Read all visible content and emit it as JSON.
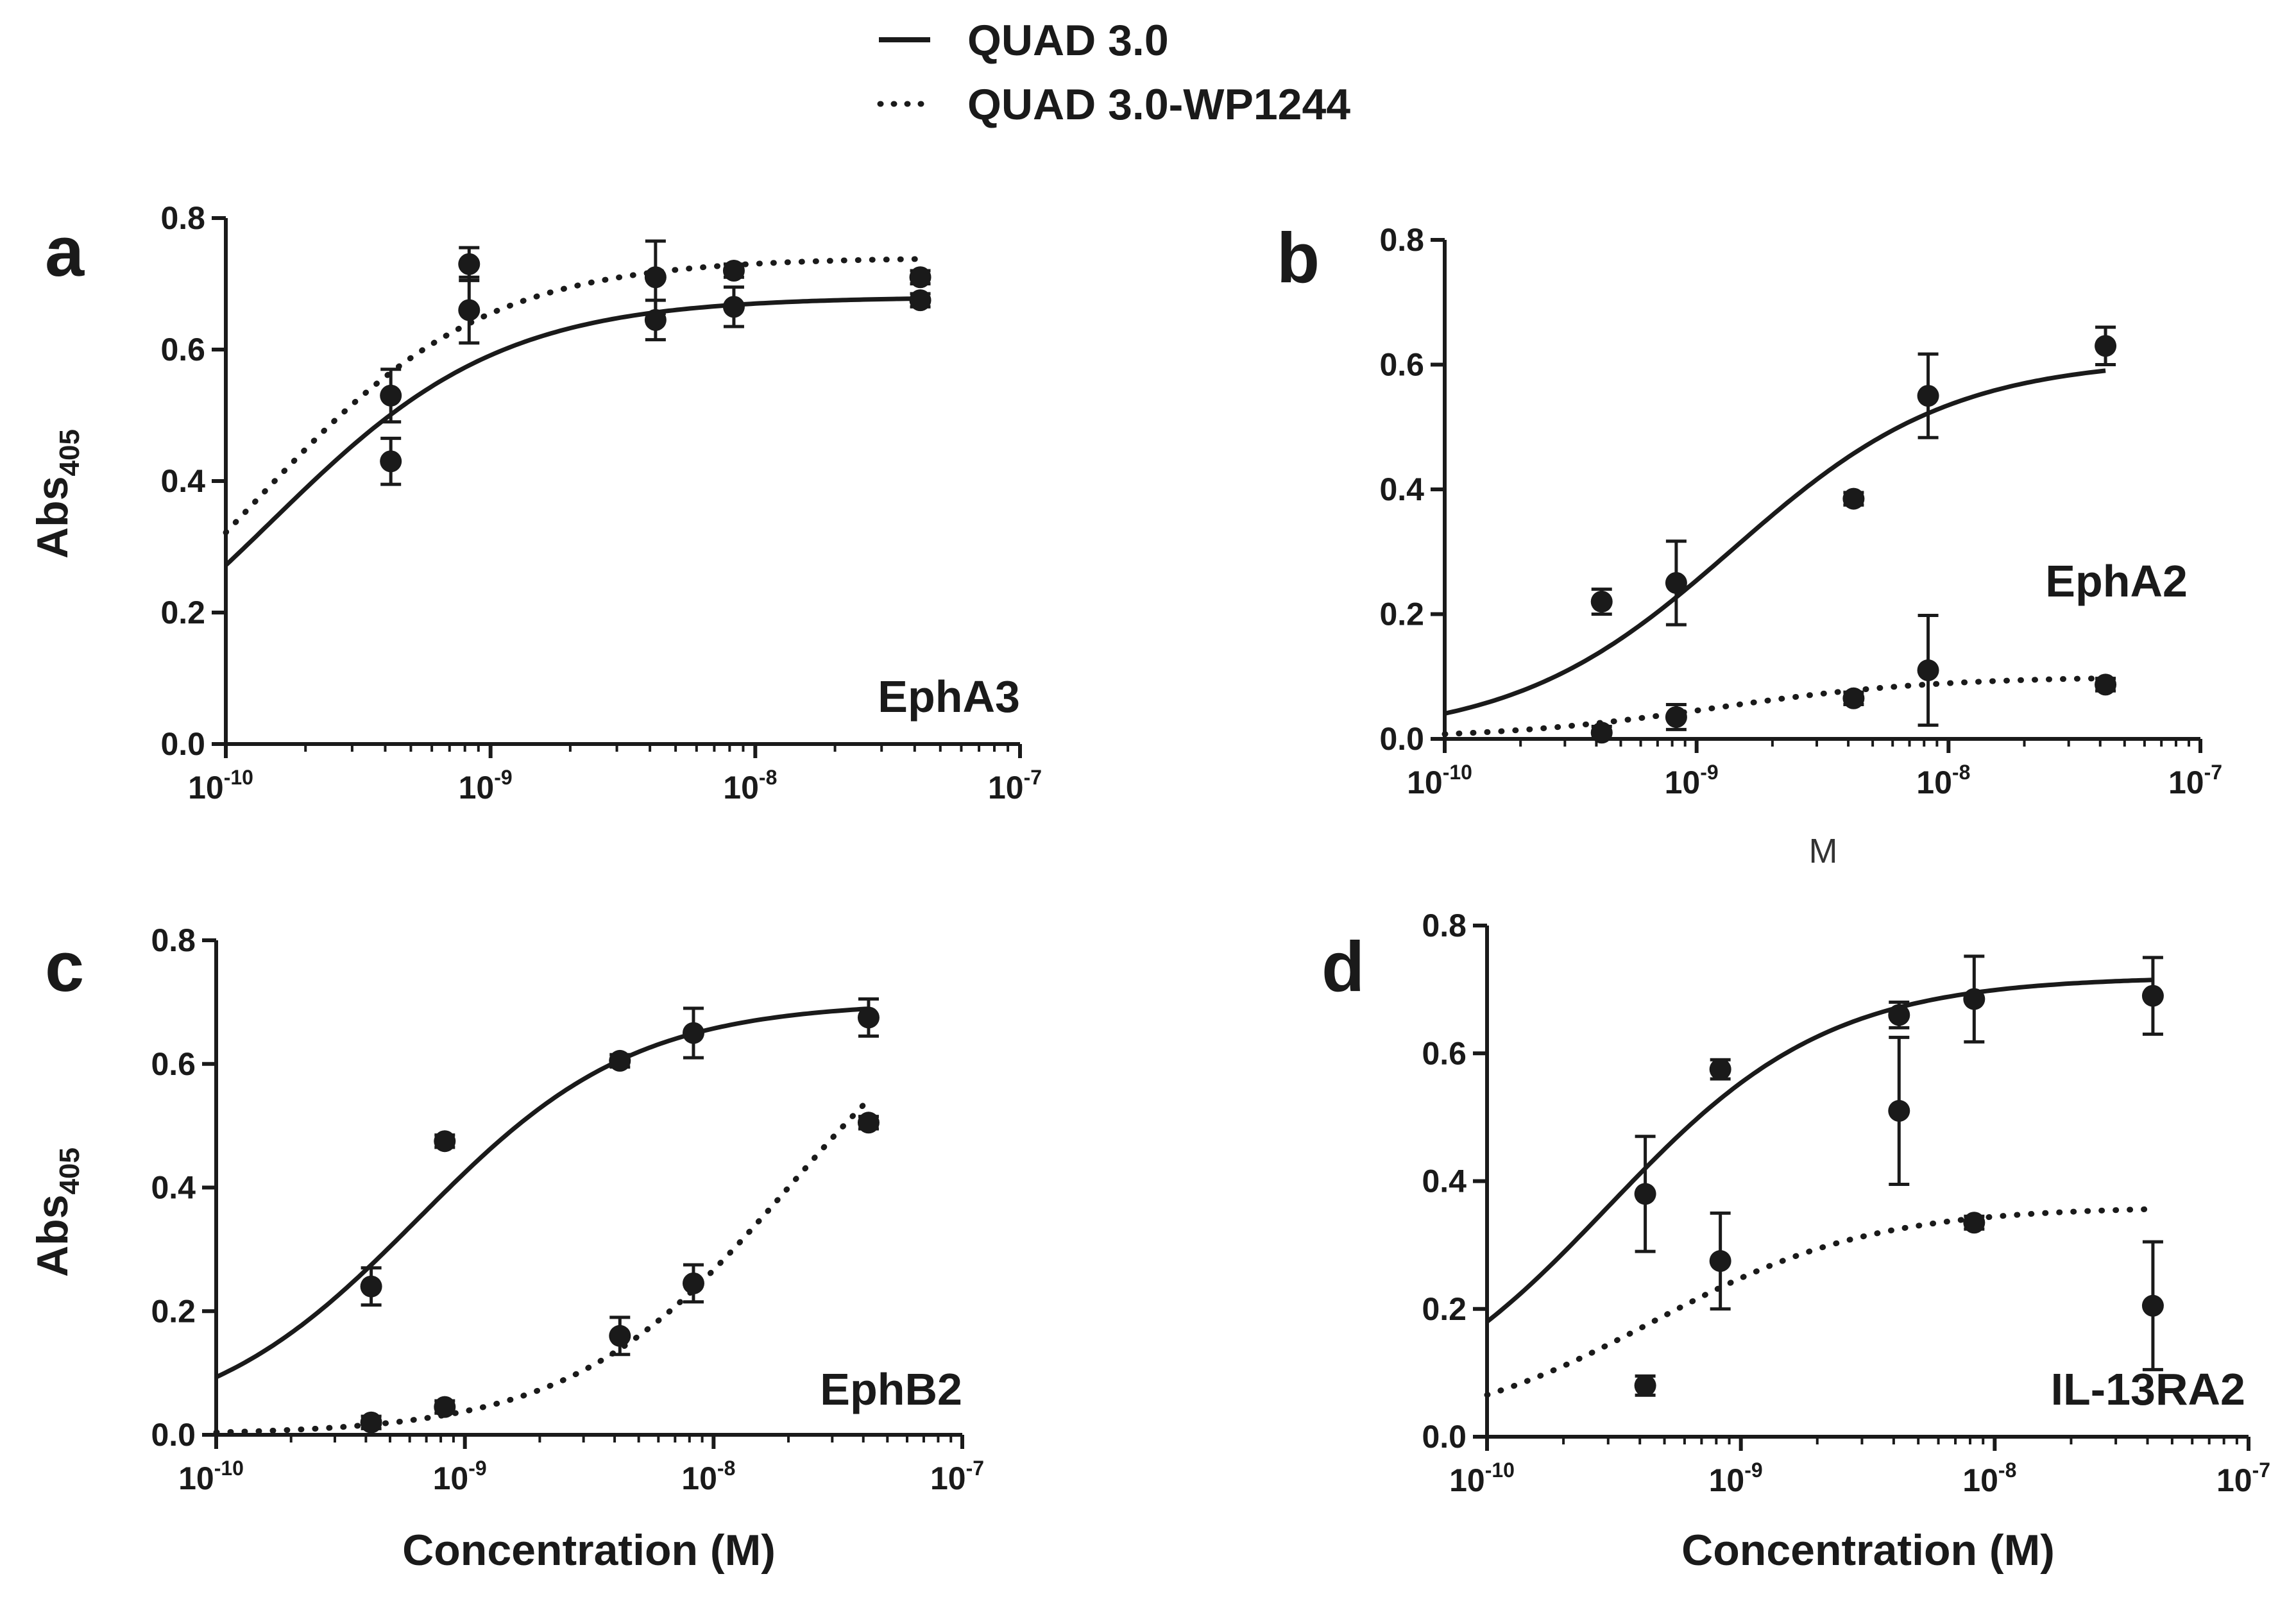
{
  "chart_data": [
    {
      "type": "scatter",
      "panel": "a",
      "label": "EphA3",
      "ylabel": "Abs",
      "ylabel_sub": "405",
      "xlabel": "",
      "xscale": "log",
      "xlim": [
        1e-10,
        1e-07
      ],
      "ylim": [
        0,
        0.8
      ],
      "yticks": [
        "0.0",
        "0.2",
        "0.4",
        "0.6",
        "0.8"
      ],
      "xticks": [
        {
          "base": "10",
          "exp": "-10"
        },
        {
          "base": "10",
          "exp": "-9"
        },
        {
          "base": "10",
          "exp": "-8"
        },
        {
          "base": "10",
          "exp": "-7"
        }
      ],
      "series": [
        {
          "name": "QUAD 3.0",
          "style": "solid",
          "fit": {
            "bottom": 0,
            "top": 0.68,
            "ec50": 1.5e-10
          },
          "points": [
            {
              "x": 4.2e-10,
              "y": 0.43,
              "err": 0.035
            },
            {
              "x": 8.3e-10,
              "y": 0.66,
              "err": 0.05
            },
            {
              "x": 4.2e-09,
              "y": 0.645,
              "err": 0.03
            },
            {
              "x": 8.3e-09,
              "y": 0.665,
              "err": 0.03
            },
            {
              "x": 4.2e-08,
              "y": 0.675,
              "err": 0.01
            }
          ]
        },
        {
          "name": "QUAD 3.0-WP1244",
          "style": "dotted",
          "fit": {
            "bottom": 0,
            "top": 0.74,
            "ec50": 1.3e-10
          },
          "points": [
            {
              "x": 4.2e-10,
              "y": 0.53,
              "err": 0.04
            },
            {
              "x": 8.3e-10,
              "y": 0.73,
              "err": 0.025
            },
            {
              "x": 4.2e-09,
              "y": 0.71,
              "err": 0.055
            },
            {
              "x": 8.3e-09,
              "y": 0.72,
              "err": 0.01
            },
            {
              "x": 4.2e-08,
              "y": 0.71,
              "err": 0.01
            }
          ]
        }
      ]
    },
    {
      "type": "scatter",
      "panel": "b",
      "label": "EphA2",
      "ylabel": "",
      "ylabel_sub": "",
      "xlabel": "M",
      "xscale": "log",
      "xlim": [
        1e-10,
        1e-07
      ],
      "ylim": [
        0,
        0.8
      ],
      "yticks": [
        "0.0",
        "0.2",
        "0.4",
        "0.6",
        "0.8"
      ],
      "xticks": [
        {
          "base": "10",
          "exp": "-10"
        },
        {
          "base": "10",
          "exp": "-9"
        },
        {
          "base": "10",
          "exp": "-8"
        },
        {
          "base": "10",
          "exp": "-7"
        }
      ],
      "series": [
        {
          "name": "QUAD 3.0",
          "style": "solid",
          "fit": {
            "bottom": 0,
            "top": 0.61,
            "ec50": 1.4e-09
          },
          "points": [
            {
              "x": 4.2e-10,
              "y": 0.22,
              "err": 0.02
            },
            {
              "x": 8.3e-10,
              "y": 0.25,
              "err": 0.067
            },
            {
              "x": 4.2e-09,
              "y": 0.385,
              "err": 0.01
            },
            {
              "x": 8.3e-09,
              "y": 0.55,
              "err": 0.067
            },
            {
              "x": 4.2e-08,
              "y": 0.63,
              "err": 0.03
            }
          ]
        },
        {
          "name": "QUAD 3.0-WP1244",
          "style": "dotted",
          "fit": {
            "bottom": 0,
            "top": 0.1,
            "ec50": 1.2e-09
          },
          "points": [
            {
              "x": 4.2e-10,
              "y": 0.01,
              "err": 0.01
            },
            {
              "x": 8.3e-10,
              "y": 0.035,
              "err": 0.02
            },
            {
              "x": 4.2e-09,
              "y": 0.065,
              "err": 0.01
            },
            {
              "x": 8.3e-09,
              "y": 0.11,
              "err": 0.088
            },
            {
              "x": 4.2e-08,
              "y": 0.087,
              "err": 0.01
            }
          ]
        }
      ]
    },
    {
      "type": "scatter",
      "panel": "c",
      "label": "EphB2",
      "ylabel": "Abs",
      "ylabel_sub": "405",
      "xlabel": "Concentration (M)",
      "xscale": "log",
      "xlim": [
        1e-10,
        1e-07
      ],
      "ylim": [
        0,
        0.8
      ],
      "yticks": [
        "0.0",
        "0.2",
        "0.4",
        "0.6",
        "0.8"
      ],
      "xticks": [
        {
          "base": "10",
          "exp": "-10"
        },
        {
          "base": "10",
          "exp": "-9"
        },
        {
          "base": "10",
          "exp": "-8"
        },
        {
          "base": "10",
          "exp": "-7"
        }
      ],
      "series": [
        {
          "name": "QUAD 3.0",
          "style": "solid",
          "fit": {
            "bottom": 0,
            "top": 0.7,
            "ec50": 6.5e-10
          },
          "points": [
            {
              "x": 4.2e-10,
              "y": 0.24,
              "err": 0.03
            },
            {
              "x": 8.3e-10,
              "y": 0.475,
              "err": 0.01
            },
            {
              "x": 4.2e-09,
              "y": 0.605,
              "err": 0.01
            },
            {
              "x": 8.3e-09,
              "y": 0.65,
              "err": 0.04
            },
            {
              "x": 4.2e-08,
              "y": 0.675,
              "err": 0.03
            }
          ]
        },
        {
          "name": "QUAD 3.0-WP1244",
          "style": "dotted",
          "fit": {
            "bottom": 0,
            "top": 0.8,
            "ec50": 2e-08
          },
          "points": [
            {
              "x": 4.2e-10,
              "y": 0.02,
              "err": 0.01
            },
            {
              "x": 8.3e-10,
              "y": 0.045,
              "err": 0.01
            },
            {
              "x": 4.2e-09,
              "y": 0.16,
              "err": 0.03
            },
            {
              "x": 8.3e-09,
              "y": 0.245,
              "err": 0.03
            },
            {
              "x": 4.2e-08,
              "y": 0.505,
              "err": 0.01
            }
          ]
        }
      ]
    },
    {
      "type": "scatter",
      "panel": "d",
      "label": "IL-13RA2",
      "ylabel": "",
      "ylabel_sub": "",
      "xlabel": "Concentration (M)",
      "xscale": "log",
      "xlim": [
        1e-10,
        1e-07
      ],
      "ylim": [
        0,
        0.8
      ],
      "yticks": [
        "0.0",
        "0.2",
        "0.4",
        "0.6",
        "0.8"
      ],
      "xticks": [
        {
          "base": "10",
          "exp": "-10"
        },
        {
          "base": "10",
          "exp": "-9"
        },
        {
          "base": "10",
          "exp": "-8"
        },
        {
          "base": "10",
          "exp": "-7"
        }
      ],
      "series": [
        {
          "name": "QUAD 3.0",
          "style": "solid",
          "fit": {
            "bottom": 0,
            "top": 0.72,
            "ec50": 3e-10
          },
          "points": [
            {
              "x": 4.2e-10,
              "y": 0.38,
              "err": 0.09
            },
            {
              "x": 8.3e-10,
              "y": 0.575,
              "err": 0.015
            },
            {
              "x": 4.2e-09,
              "y": 0.66,
              "err": 0.02
            },
            {
              "x": 8.3e-09,
              "y": 0.685,
              "err": 0.067
            },
            {
              "x": 4.2e-08,
              "y": 0.69,
              "err": 0.06
            }
          ]
        },
        {
          "name": "QUAD 3.0-WP1244",
          "style": "dotted",
          "fit": {
            "bottom": 0,
            "top": 0.36,
            "ec50": 4.5e-10
          },
          "points": [
            {
              "x": 4.2e-10,
              "y": 0.08,
              "err": 0.015
            },
            {
              "x": 8.3e-10,
              "y": 0.275,
              "err": 0.075
            },
            {
              "x": 4.2e-09,
              "y": 0.51,
              "err": 0.115
            },
            {
              "x": 8.3e-09,
              "y": 0.335,
              "err": 0.01
            },
            {
              "x": 4.2e-08,
              "y": 0.205,
              "err": 0.1
            }
          ]
        }
      ]
    }
  ],
  "legend": {
    "items": [
      {
        "name": "QUAD 3.0",
        "style": "solid"
      },
      {
        "name": "QUAD 3.0-WP1244",
        "style": "dotted"
      }
    ],
    "placement": "top-center"
  },
  "colors": {
    "ink": "#1a1a1a",
    "background": "#ffffff"
  }
}
